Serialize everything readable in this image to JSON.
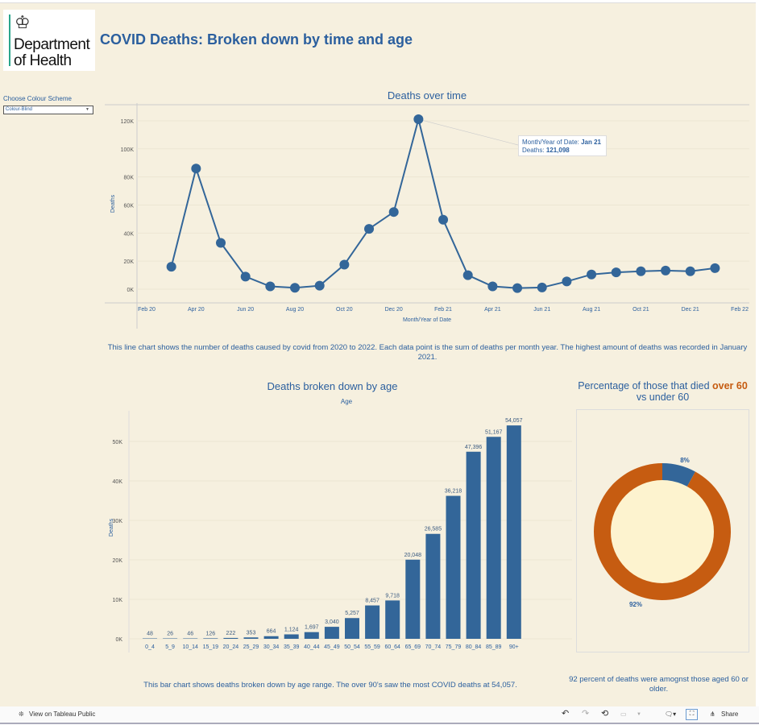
{
  "header": {
    "logo_text": "Department of Health",
    "logo_line1": "Department",
    "logo_line2": "of Health",
    "title": "COVID Deaths: Broken down by time and age"
  },
  "colour_scheme": {
    "label": "Choose Colour Scheme",
    "value": "Colour-Blind"
  },
  "colors": {
    "blue": "#336699",
    "orange": "#c65c11",
    "background": "#f6f0df",
    "donut_center": "#fdf3cf"
  },
  "line_section": {
    "title": "Deaths over time",
    "description": "This line chart shows the number of deaths caused by covid from 2020 to 2022. Each data point is the sum of deaths per month year. The highest amount of deaths was recorded in January 2021.",
    "tooltip": {
      "label1": "Month/Year of Date:",
      "value1": "Jan 21",
      "label2": "Deaths:",
      "value2": "121,098"
    }
  },
  "bar_section": {
    "title": "Deaths broken down by age",
    "subtitle": "Age",
    "description": "This bar chart shows deaths broken down by age range. The over 90's saw the most COVID deaths at 54,057."
  },
  "pie_section": {
    "title_a": "Percentage of those that died ",
    "title_b": "over 60",
    "title_c": " vs under 60",
    "description": "92 percent of deaths were amognst those aged 60 or older."
  },
  "chart_data": [
    {
      "type": "line",
      "title": "Deaths over time",
      "xlabel": "Month/Year of Date",
      "ylabel": "Deaths",
      "ylim": [
        0,
        120000
      ],
      "yticks": [
        "0K",
        "20K",
        "40K",
        "60K",
        "80K",
        "100K",
        "120K"
      ],
      "xticks": [
        "Feb 20",
        "Apr 20",
        "Jun 20",
        "Aug 20",
        "Oct 20",
        "Dec 20",
        "Feb 21",
        "Apr 21",
        "Jun 21",
        "Aug 21",
        "Oct 21",
        "Dec 21",
        "Feb 22"
      ],
      "x": [
        "Mar 20",
        "Apr 20",
        "May 20",
        "Jun 20",
        "Jul 20",
        "Aug 20",
        "Sep 20",
        "Oct 20",
        "Nov 20",
        "Dec 20",
        "Jan 21",
        "Feb 21",
        "Mar 21",
        "Apr 21",
        "May 21",
        "Jun 21",
        "Jul 21",
        "Aug 21",
        "Sep 21",
        "Oct 21",
        "Nov 21",
        "Dec 21",
        "Jan 22"
      ],
      "values": [
        16000,
        86000,
        33000,
        9000,
        2000,
        1000,
        2500,
        17500,
        43000,
        55000,
        121098,
        49500,
        10000,
        2000,
        800,
        1200,
        5500,
        10500,
        12000,
        12800,
        13300,
        12800,
        15000
      ]
    },
    {
      "type": "bar",
      "title": "Deaths broken down by age",
      "xlabel": "Age",
      "ylabel": "Deaths",
      "ylim": [
        0,
        55000
      ],
      "yticks": [
        "0K",
        "10K",
        "20K",
        "30K",
        "40K",
        "50K"
      ],
      "categories": [
        "0_4",
        "5_9",
        "10_14",
        "15_19",
        "20_24",
        "25_29",
        "30_34",
        "35_39",
        "40_44",
        "45_49",
        "50_54",
        "55_59",
        "60_64",
        "65_69",
        "70_74",
        "75_79",
        "80_84",
        "85_89",
        "90+"
      ],
      "values": [
        48,
        26,
        46,
        126,
        222,
        353,
        664,
        1124,
        1697,
        3040,
        5257,
        8457,
        9718,
        20048,
        26585,
        36218,
        47396,
        51167,
        54057
      ],
      "labels": [
        "48",
        "26",
        "46",
        "126",
        "222",
        "353",
        "664",
        "1,124",
        "1,697",
        "3,040",
        "5,257",
        "8,457",
        "9,718",
        "20,048",
        "26,585",
        "36,218",
        "47,396",
        "51,167",
        "54,057"
      ]
    },
    {
      "type": "pie",
      "title": "Percentage of those that died over 60 vs under 60",
      "slices": [
        {
          "name": "under 60",
          "value": 8,
          "label": "8%"
        },
        {
          "name": "over 60",
          "value": 92,
          "label": "92%"
        }
      ]
    }
  ],
  "footer": {
    "view_label": "View on Tableau Public",
    "share_label": "Share"
  }
}
